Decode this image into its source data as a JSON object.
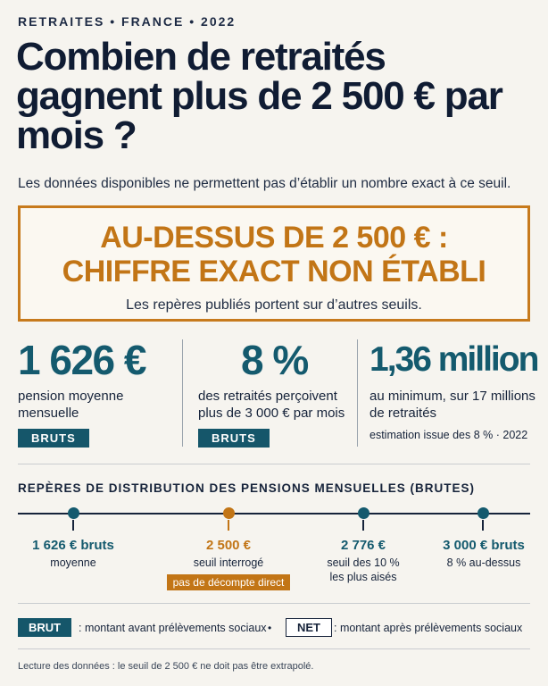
{
  "header": {
    "kicker": "RETRAITES • FRANCE • 2022",
    "title": "Combien de retraités gagnent plus de 2 500 € par mois ?",
    "subtitle": "Les données disponibles ne permettent pas d’établir un nombre exact à ce seuil."
  },
  "callout": {
    "line1": "AU-DESSUS DE 2 500 € :",
    "line2": "CHIFFRE EXACT NON ÉTABLI",
    "sub": "Les repères publiés portent sur d’autres seuils."
  },
  "stats": [
    {
      "value": "1 626 €",
      "desc_line1": "pension moyenne",
      "desc_line2": "mensuelle",
      "badge": "BRUTS"
    },
    {
      "value": "8 %",
      "desc_line1": "des retraités perçoivent",
      "desc_line2": "plus de 3 000 € par mois",
      "badge": "BRUTS"
    },
    {
      "value": "1,36 million",
      "desc_line1": "au minimum, sur 17 millions",
      "desc_line2": "de retraités",
      "note": "estimation issue des 8 % · 2022"
    }
  ],
  "distribution": {
    "title": "REPÈRES DE DISTRIBUTION DES PENSIONS MENSUELLES (BRUTES)",
    "markers": [
      {
        "value": "1 626 € bruts",
        "sub1": "moyenne",
        "sub2": ""
      },
      {
        "value": "2 500 €",
        "sub1": "seuil interrogé",
        "sub2": "",
        "tag": "pas de décompte direct"
      },
      {
        "value": "2 776 €",
        "sub1": "seuil des 10 %",
        "sub2": "les plus aisés"
      },
      {
        "value": "3 000 € bruts",
        "sub1": "8 % au-dessus",
        "sub2": ""
      }
    ]
  },
  "legend": {
    "brut_label": "BRUT",
    "brut_text": ": montant avant prélèvements sociaux",
    "separator": "•",
    "net_label": "NET",
    "net_text": ": montant après prélèvements sociaux"
  },
  "footnote": "Lecture des données : le seuil de 2 500 € ne doit pas être extrapolé.",
  "colors": {
    "teal": "#145a6e",
    "orange": "#c27516",
    "navy": "#101c33"
  }
}
